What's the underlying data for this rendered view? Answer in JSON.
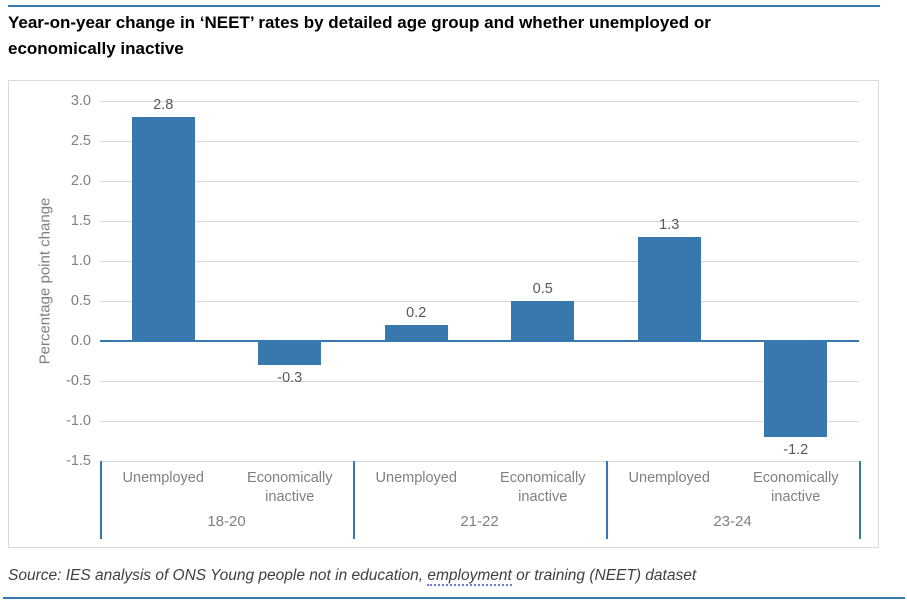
{
  "title_lines": [
    "Year-on-year change in ‘NEET’ rates by detailed age group and whether unemployed or",
    "economically inactive"
  ],
  "source": {
    "prefix": "Source: IES analysis of ONS Young people not in education, ",
    "highlighted_word": "employment",
    "suffix": " or training (NEET) dataset"
  },
  "colors": {
    "bar": "#3878AF",
    "zero_axis": "#3878AF",
    "separator": "#3878AF",
    "rule": "#3878AF",
    "gridline": "#D9D9D9",
    "panel_border": "#D9D9D9",
    "tick_label": "#808080",
    "category_label": "#808080",
    "data_label": "#595959",
    "title_text": "#000000",
    "source_text": "#404040"
  },
  "chart_data": {
    "type": "bar",
    "title": "",
    "xlabel": "",
    "ylabel": "Percentage point change",
    "ylim": [
      -1.5,
      3.0
    ],
    "ytick_step": 0.5,
    "grid": true,
    "legend": "none",
    "groups": [
      {
        "label": "18-20",
        "categories": [
          "Unemployed",
          "Economically inactive"
        ],
        "values": [
          2.8,
          -0.3
        ]
      },
      {
        "label": "21-22",
        "categories": [
          "Unemployed",
          "Economically inactive"
        ],
        "values": [
          0.2,
          0.5
        ]
      },
      {
        "label": "23-24",
        "categories": [
          "Unemployed",
          "Economically inactive"
        ],
        "values": [
          1.3,
          -1.2
        ]
      }
    ],
    "data_labels": [
      "2.8",
      "-0.3",
      "0.2",
      "0.5",
      "1.3",
      "-1.2"
    ]
  }
}
